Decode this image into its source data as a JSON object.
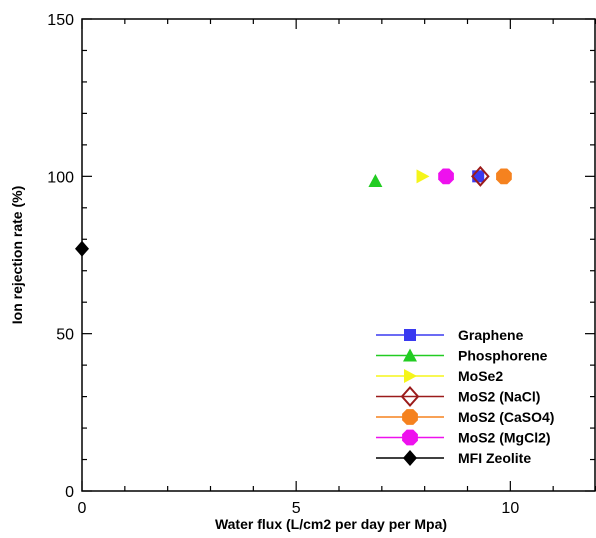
{
  "chart_data": {
    "type": "scatter",
    "title": "",
    "xlabel": "Water flux (L/cm2 per day per Mpa)",
    "ylabel": "Ion rejection rate (%)",
    "xlim": [
      0,
      12
    ],
    "ylim": [
      0,
      150
    ],
    "x_major_ticks": [
      0,
      5,
      10
    ],
    "y_major_ticks": [
      0,
      50,
      100,
      150
    ],
    "x_minor_step": 1,
    "y_minor_step": 10,
    "grid": false,
    "legend_position": "bottom-right",
    "series": [
      {
        "name": "Graphene",
        "marker": "square",
        "color": "#3a3af0",
        "x": [
          9.25
        ],
        "y": [
          100
        ]
      },
      {
        "name": "Phosphorene",
        "marker": "triangle",
        "color": "#22cc22",
        "x": [
          6.85
        ],
        "y": [
          98.5
        ]
      },
      {
        "name": "MoSe2",
        "marker": "tri-right",
        "color": "#f5f51a",
        "x": [
          7.95
        ],
        "y": [
          100
        ]
      },
      {
        "name": "MoS2 (NaCl)",
        "marker": "diamond-open",
        "color": "#9b1b1b",
        "x": [
          9.3
        ],
        "y": [
          100
        ]
      },
      {
        "name": "MoS2 (CaSO4)",
        "marker": "octagon",
        "color": "#f5821f",
        "x": [
          9.85
        ],
        "y": [
          100
        ]
      },
      {
        "name": "MoS2 (MgCl2)",
        "marker": "octagon",
        "color": "#ee11ee",
        "x": [
          8.5
        ],
        "y": [
          100
        ]
      },
      {
        "name": "MFI Zeolite",
        "marker": "diamond",
        "color": "#000000",
        "x": [
          0.0
        ],
        "y": [
          77
        ]
      }
    ]
  }
}
